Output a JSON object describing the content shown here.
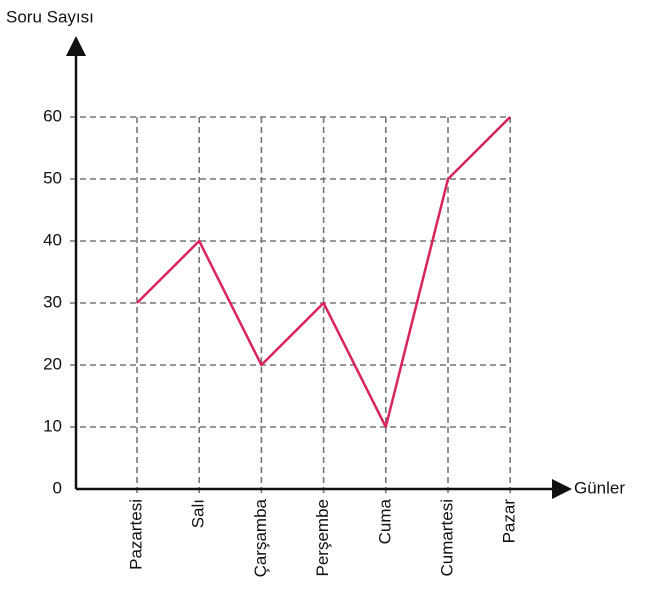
{
  "chart_data": {
    "type": "line",
    "y_label": "Soru Sayısı",
    "x_label": "Günler",
    "categories": [
      "Pazartesi",
      "Salı",
      "Çarşamba",
      "Perşembe",
      "Cuma",
      "Cumartesi",
      "Pazar"
    ],
    "values": [
      30,
      40,
      20,
      30,
      10,
      50,
      60
    ],
    "color": "#d9235a",
    "ylim": [
      0,
      60
    ],
    "yticks": [
      0,
      10,
      20,
      30,
      40,
      50,
      60
    ],
    "grid": true
  }
}
